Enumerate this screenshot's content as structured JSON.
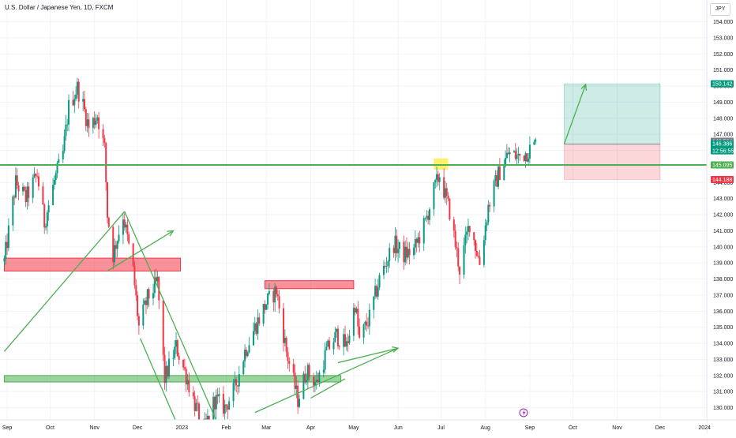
{
  "header": {
    "title": "U.S. Dollar / Japanese Yen, 1D, FXCM",
    "currency": "JPY"
  },
  "chart_data": {
    "type": "candlestick",
    "y_ticks": [
      "130.000",
      "131.000",
      "132.000",
      "133.000",
      "134.000",
      "135.000",
      "136.000",
      "137.000",
      "138.000",
      "139.000",
      "140.000",
      "141.000",
      "142.000",
      "143.000",
      "144.000",
      "145.000",
      "146.000",
      "147.000",
      "148.000",
      "149.000",
      "150.000",
      "151.000",
      "152.000",
      "153.000",
      "154.000"
    ],
    "x_ticks": [
      "Sep",
      "Oct",
      "Nov",
      "Dec",
      "2023",
      "Feb",
      "Mar",
      "Apr",
      "May",
      "Jun",
      "Jul",
      "Aug",
      "Sep",
      "Oct",
      "Nov",
      "Dec",
      "2024"
    ],
    "ylim": [
      129.3,
      154.7
    ],
    "grid": true,
    "price_labels": [
      {
        "value": 150.142,
        "text": "150.142",
        "color": "#089981"
      },
      {
        "value": 146.564,
        "text": "146.564",
        "color": "#787b86"
      },
      {
        "value": 146.386,
        "text": "146.386",
        "color": "#089981",
        "countdown": "12:56:55"
      },
      {
        "value": 145.095,
        "text": "145.095",
        "color": "#4caf50"
      },
      {
        "value": 144.188,
        "text": "144.188",
        "color": "#f23645"
      }
    ],
    "horizontal_line": {
      "value": 145.095,
      "color": "#4caf50"
    },
    "position": {
      "entry": 146.386,
      "target": 150.142,
      "stop": 144.188,
      "start": "2023-09-25",
      "end": "2023-12-01"
    },
    "candle_range": {
      "start": "2022-08-30",
      "end": "2023-09-05"
    },
    "price_path": [
      [
        "2022-08-30",
        139.1
      ],
      [
        "2022-09-07",
        144.0
      ],
      [
        "2022-09-14",
        143.0
      ],
      [
        "2022-09-22",
        144.5
      ],
      [
        "2022-09-27",
        141.5
      ],
      [
        "2022-10-04",
        144.1
      ],
      [
        "2022-10-10",
        145.8
      ],
      [
        "2022-10-14",
        148.7
      ],
      [
        "2022-10-20",
        149.9
      ],
      [
        "2022-10-24",
        148.8
      ],
      [
        "2022-10-28",
        147.4
      ],
      [
        "2022-11-03",
        148.2
      ],
      [
        "2022-11-08",
        146.1
      ],
      [
        "2022-11-10",
        142.0
      ],
      [
        "2022-11-14",
        139.5
      ],
      [
        "2022-11-21",
        142.0
      ],
      [
        "2022-11-28",
        138.5
      ],
      [
        "2022-12-02",
        135.0
      ],
      [
        "2022-12-08",
        136.8
      ],
      [
        "2022-12-15",
        137.8
      ],
      [
        "2022-12-20",
        131.8
      ],
      [
        "2022-12-28",
        133.8
      ],
      [
        "2023-01-04",
        132.0
      ],
      [
        "2023-01-16",
        128.5
      ],
      [
        "2023-01-24",
        130.5
      ],
      [
        "2023-01-31",
        130.0
      ],
      [
        "2023-02-07",
        131.2
      ],
      [
        "2023-02-14",
        133.5
      ],
      [
        "2023-02-21",
        135.0
      ],
      [
        "2023-03-01",
        136.5
      ],
      [
        "2023-03-08",
        137.3
      ],
      [
        "2023-03-15",
        133.5
      ],
      [
        "2023-03-23",
        130.5
      ],
      [
        "2023-03-29",
        132.3
      ],
      [
        "2023-04-05",
        131.5
      ],
      [
        "2023-04-12",
        133.5
      ],
      [
        "2023-04-19",
        134.5
      ],
      [
        "2023-04-26",
        133.8
      ],
      [
        "2023-05-02",
        136.5
      ],
      [
        "2023-05-05",
        134.2
      ],
      [
        "2023-05-12",
        135.6
      ],
      [
        "2023-05-19",
        138.0
      ],
      [
        "2023-05-29",
        140.2
      ],
      [
        "2023-06-05",
        139.5
      ],
      [
        "2023-06-12",
        139.8
      ],
      [
        "2023-06-20",
        141.5
      ],
      [
        "2023-06-26",
        143.5
      ],
      [
        "2023-06-30",
        144.5
      ],
      [
        "2023-07-07",
        142.2
      ],
      [
        "2023-07-14",
        138.6
      ],
      [
        "2023-07-21",
        141.5
      ],
      [
        "2023-07-28",
        139.0
      ],
      [
        "2023-08-03",
        142.5
      ],
      [
        "2023-08-10",
        144.5
      ],
      [
        "2023-08-17",
        145.8
      ],
      [
        "2023-08-24",
        145.6
      ],
      [
        "2023-08-30",
        145.9
      ],
      [
        "2023-09-05",
        146.4
      ]
    ],
    "drawings": {
      "red_zones": [
        {
          "start": "2022-08-30",
          "end": "2022-12-31",
          "top": 139.3,
          "bottom": 138.5
        },
        {
          "start": "2023-02-28",
          "end": "2023-05-01",
          "top": 137.9,
          "bottom": 137.4
        }
      ],
      "green_zone": {
        "start": "2022-08-30",
        "end": "2023-04-22",
        "top": 132.0,
        "bottom": 131.6
      },
      "highlight": {
        "start": "2023-06-26",
        "end": "2023-07-06",
        "top": 145.5,
        "bottom": 144.8
      },
      "trend_lines": [
        {
          "from": [
            "2022-08-30",
            133.5
          ],
          "to": [
            "2022-11-22",
            142.2
          ]
        },
        {
          "from": [
            "2022-11-22",
            142.2
          ],
          "to": [
            "2023-01-31",
            128.0
          ]
        },
        {
          "from": [
            "2022-12-03",
            134.3
          ],
          "to": [
            "2022-12-31",
            128.5
          ]
        },
        {
          "from": [
            "2023-02-21",
            129.7
          ],
          "to": [
            "2023-06-01",
            133.7
          ]
        },
        {
          "from": [
            "2023-04-01",
            130.6
          ],
          "to": [
            "2023-04-25",
            131.8
          ]
        }
      ],
      "arrows": [
        {
          "from": [
            "2022-11-10",
            138.5
          ],
          "to": [
            "2022-12-26",
            141.0
          ]
        },
        {
          "from": [
            "2023-04-20",
            132.8
          ],
          "to": [
            "2023-06-01",
            133.7
          ]
        },
        {
          "from": [
            "2023-09-25",
            146.4
          ],
          "to": [
            "2023-10-10",
            150.1
          ]
        }
      ]
    }
  }
}
